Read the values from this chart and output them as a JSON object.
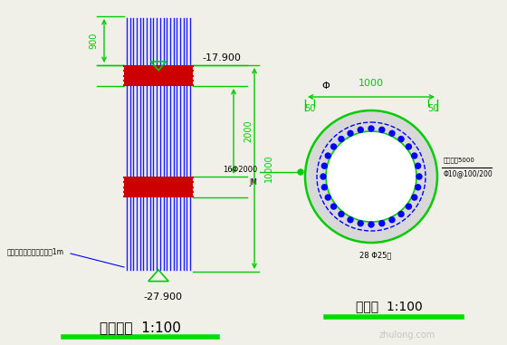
{
  "bg_color": "#f0f0e8",
  "title_left": "桩立面图  1:100",
  "title_right": "桩截面  1:100",
  "underline_color": "#00dd00",
  "dim_color": "#00cc00",
  "pile_blue": "#1a1aff",
  "pile_red": "#cc0000",
  "label_17900": "-17.900",
  "label_27900": "-27.900",
  "label_900": "900",
  "label_2000": "2000",
  "label_10000": "10000",
  "note_text": "桩底必须嵌岩伸入中风化1m",
  "phi_label": "Φ",
  "label_1000": "1000",
  "label_50_left": "50",
  "label_50_right": "50",
  "label_16phi2000": "16Φ2000",
  "label_stirrup": "Φ10@100/200",
  "label_bars": "28 Φ25筋",
  "label_len5000": "锚固长度5000",
  "watermark": "zhulong.com"
}
